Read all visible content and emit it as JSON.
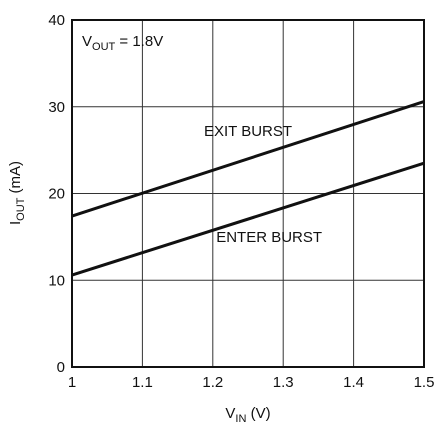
{
  "chart_data": {
    "type": "line",
    "title": "",
    "xlabel": {
      "main": "V",
      "sub": "IN",
      "unit": " (V)"
    },
    "ylabel": {
      "main": "I",
      "sub": "OUT",
      "unit": " (mA)"
    },
    "xlim": [
      1.0,
      1.5
    ],
    "ylim": [
      0,
      40
    ],
    "x_ticks": [
      1,
      1.1,
      1.2,
      1.3,
      1.4,
      1.5
    ],
    "x_tick_labels": [
      "1",
      "1.1",
      "1.2",
      "1.3",
      "1.4",
      "1.5"
    ],
    "y_ticks": [
      0,
      10,
      20,
      30,
      40
    ],
    "y_tick_labels": [
      "0",
      "10",
      "20",
      "30",
      "40"
    ],
    "grid": true,
    "annotation": {
      "main": "V",
      "sub": "OUT",
      "rest": " = 1.8V"
    },
    "series": [
      {
        "name": "EXIT BURST",
        "x": [
          1.0,
          1.5
        ],
        "y": [
          17.4,
          30.6
        ],
        "label_at": [
          1.25,
          27.2
        ]
      },
      {
        "name": "ENTER BURST",
        "x": [
          1.0,
          1.5
        ],
        "y": [
          10.6,
          23.5
        ],
        "label_at": [
          1.28,
          15.0
        ]
      }
    ],
    "line_color": "#111111",
    "grid_color": "#333333"
  }
}
